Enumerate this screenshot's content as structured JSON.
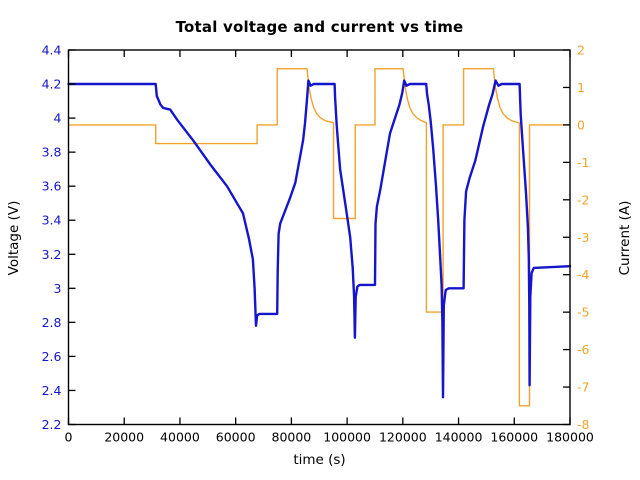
{
  "chart_data": {
    "type": "line",
    "title": "Total voltage and current vs time",
    "xlabel": "time (s)",
    "ylabel_left": "Voltage (V)",
    "ylabel_right": "Current (A)",
    "x_range": [
      0,
      180000
    ],
    "y_left_range": [
      2.2,
      4.4
    ],
    "y_right_range": [
      -8,
      2
    ],
    "x_ticks": [
      0,
      20000,
      40000,
      60000,
      80000,
      100000,
      120000,
      140000,
      160000,
      180000
    ],
    "y_left_ticks": [
      2.2,
      2.4,
      2.6,
      2.8,
      3,
      3.2,
      3.4,
      3.6,
      3.8,
      4,
      4.2,
      4.4
    ],
    "y_right_ticks": [
      -8,
      -7,
      -6,
      -5,
      -4,
      -3,
      -2,
      -1,
      0,
      1,
      2
    ],
    "grid": false,
    "legend": "none",
    "colors": {
      "voltage": "#1515cc",
      "current": "#efa32c",
      "axis": "#000000"
    },
    "series": [
      {
        "name": "Current (A)",
        "axis": "right",
        "color_key": "current",
        "points": [
          [
            0,
            0
          ],
          [
            31300,
            0
          ],
          [
            31300,
            -0.5
          ],
          [
            67700,
            -0.5
          ],
          [
            67700,
            0
          ],
          [
            74900,
            0
          ],
          [
            74900,
            1.5
          ],
          [
            85600,
            1.5
          ],
          [
            86300,
            1.02
          ],
          [
            87100,
            0.7
          ],
          [
            88000,
            0.46
          ],
          [
            89100,
            0.3
          ],
          [
            90500,
            0.19
          ],
          [
            92200,
            0.11
          ],
          [
            95100,
            0.06
          ],
          [
            95100,
            -2.5
          ],
          [
            102900,
            -2.5
          ],
          [
            102900,
            0
          ],
          [
            110000,
            0
          ],
          [
            110000,
            1.5
          ],
          [
            120100,
            1.5
          ],
          [
            120800,
            1.02
          ],
          [
            121600,
            0.7
          ],
          [
            122500,
            0.46
          ],
          [
            123600,
            0.3
          ],
          [
            125000,
            0.19
          ],
          [
            126700,
            0.11
          ],
          [
            128450,
            0.06
          ],
          [
            128450,
            -5
          ],
          [
            134450,
            -5
          ],
          [
            134450,
            0
          ],
          [
            141800,
            0
          ],
          [
            141800,
            1.5
          ],
          [
            152500,
            1.5
          ],
          [
            153200,
            1.02
          ],
          [
            154000,
            0.7
          ],
          [
            154900,
            0.46
          ],
          [
            156000,
            0.3
          ],
          [
            157400,
            0.19
          ],
          [
            159100,
            0.11
          ],
          [
            161850,
            0.05
          ],
          [
            161850,
            -7.5
          ],
          [
            165450,
            -7.5
          ],
          [
            165450,
            0
          ],
          [
            180000,
            0
          ]
        ]
      },
      {
        "name": "Voltage (V)",
        "axis": "left",
        "color_key": "voltage",
        "points": [
          [
            0,
            4.2
          ],
          [
            31300,
            4.2
          ],
          [
            31700,
            4.13
          ],
          [
            33000,
            4.08
          ],
          [
            34000,
            4.06
          ],
          [
            36500,
            4.05
          ],
          [
            39000,
            3.99
          ],
          [
            44700,
            3.87
          ],
          [
            50800,
            3.73
          ],
          [
            56900,
            3.6
          ],
          [
            62650,
            3.44
          ],
          [
            64800,
            3.29
          ],
          [
            66200,
            3.17
          ],
          [
            66800,
            3.0
          ],
          [
            67300,
            2.78
          ],
          [
            67700,
            2.84
          ],
          [
            68500,
            2.85
          ],
          [
            74900,
            2.85
          ],
          [
            75100,
            3.1
          ],
          [
            75400,
            3.32
          ],
          [
            76000,
            3.38
          ],
          [
            79500,
            3.53
          ],
          [
            81400,
            3.62
          ],
          [
            83100,
            3.77
          ],
          [
            84200,
            3.87
          ],
          [
            84900,
            3.97
          ],
          [
            85600,
            4.11
          ],
          [
            86100,
            4.22
          ],
          [
            86900,
            4.19
          ],
          [
            88000,
            4.2
          ],
          [
            95500,
            4.2
          ],
          [
            95700,
            4.12
          ],
          [
            96300,
            3.95
          ],
          [
            97500,
            3.7
          ],
          [
            99300,
            3.5
          ],
          [
            101100,
            3.3
          ],
          [
            102000,
            3.12
          ],
          [
            102500,
            2.95
          ],
          [
            102800,
            2.71
          ],
          [
            103100,
            2.95
          ],
          [
            103700,
            3.01
          ],
          [
            104500,
            3.02
          ],
          [
            110000,
            3.02
          ],
          [
            110200,
            3.38
          ],
          [
            110700,
            3.48
          ],
          [
            111900,
            3.58
          ],
          [
            113500,
            3.73
          ],
          [
            115400,
            3.91
          ],
          [
            117200,
            4.0
          ],
          [
            118800,
            4.08
          ],
          [
            119800,
            4.15
          ],
          [
            120500,
            4.22
          ],
          [
            121300,
            4.19
          ],
          [
            122500,
            4.2
          ],
          [
            128400,
            4.2
          ],
          [
            128700,
            4.14
          ],
          [
            129300,
            4.08
          ],
          [
            130000,
            3.98
          ],
          [
            130900,
            3.82
          ],
          [
            131900,
            3.6
          ],
          [
            132700,
            3.4
          ],
          [
            133400,
            3.18
          ],
          [
            133900,
            3.02
          ],
          [
            134200,
            2.8
          ],
          [
            134400,
            2.36
          ],
          [
            134700,
            2.9
          ],
          [
            135400,
            2.99
          ],
          [
            136500,
            3.0
          ],
          [
            141800,
            3.0
          ],
          [
            142100,
            3.4
          ],
          [
            142700,
            3.57
          ],
          [
            144000,
            3.65
          ],
          [
            146000,
            3.75
          ],
          [
            148800,
            3.95
          ],
          [
            151000,
            4.08
          ],
          [
            152200,
            4.14
          ],
          [
            153300,
            4.22
          ],
          [
            154300,
            4.19
          ],
          [
            155500,
            4.2
          ],
          [
            161900,
            4.2
          ],
          [
            162300,
            4.02
          ],
          [
            163200,
            3.8
          ],
          [
            164200,
            3.56
          ],
          [
            164900,
            3.36
          ],
          [
            165200,
            3.18
          ],
          [
            165400,
            2.9
          ],
          [
            165500,
            2.43
          ],
          [
            165750,
            2.95
          ],
          [
            166200,
            3.09
          ],
          [
            167000,
            3.12
          ],
          [
            180000,
            3.13
          ]
        ]
      }
    ]
  }
}
